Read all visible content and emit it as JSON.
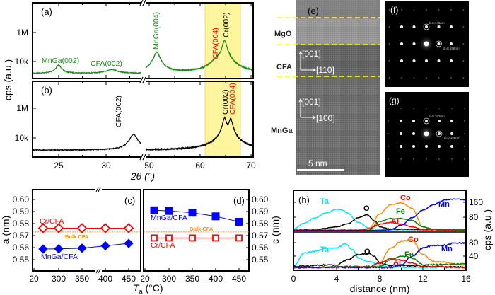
{
  "chart_data": [
    {
      "panel": "(a)",
      "type": "line",
      "ylabel": "cps (a.u.)",
      "xlabel": "2θ (°)",
      "yscale": "log",
      "yticks": [
        "1M",
        "10k"
      ],
      "xticks": [
        "25",
        "30",
        "50",
        "60",
        "70"
      ],
      "xbreak": [
        34,
        49
      ],
      "highlight_range": [
        61,
        68
      ],
      "highlight_color": "#fff59d",
      "color": "#1a8a1a",
      "baseline_cps": 1500,
      "peaks": [
        {
          "label": "MnGa(002)",
          "pos": 25.0,
          "cps": 5500,
          "fwhm": 0.6,
          "color": "#1a8a1a"
        },
        {
          "label": "CFA(002)",
          "pos": 30.6,
          "cps": 2800,
          "fwhm": 1.2,
          "color": "#1a8a1a"
        },
        {
          "label": "MnGa(004)",
          "pos": 51.5,
          "cps": 45000,
          "fwhm": 1.0,
          "color": "#1a8a1a"
        },
        {
          "label": "CFA(004)",
          "pos": 63.2,
          "cps": 9000,
          "fwhm": 1.5,
          "color": "#ff0000"
        },
        {
          "label": "Cr(002)",
          "pos": 64.8,
          "cps": 280000,
          "fwhm": 0.7,
          "color": "#000000"
        }
      ]
    },
    {
      "panel": "(b)",
      "type": "line",
      "yscale": "log",
      "yticks": [
        "1M",
        "10k"
      ],
      "color": "#000000",
      "baseline_cps": 1500,
      "peaks": [
        {
          "label": "CFA(002)",
          "pos": 32.9,
          "cps": 17000,
          "fwhm": 0.7,
          "color": "#000000"
        },
        {
          "label": "Cr(002)",
          "pos": 64.8,
          "cps": 220000,
          "fwhm": 0.6,
          "color": "#000000"
        },
        {
          "label": "CFA(004)",
          "pos": 66.0,
          "cps": 190000,
          "fwhm": 0.6,
          "color": "#ff0000"
        }
      ]
    },
    {
      "panel": "(c)",
      "type": "line",
      "ylabel": "a (nm)",
      "xlabel_main": "T",
      "xlabel_sub": "a",
      "xlabel_unit": "(°C)",
      "ylim": [
        0.54,
        0.605
      ],
      "yticks": [
        "0.60",
        "0.59",
        "0.58",
        "0.57",
        "0.56",
        "0.55"
      ],
      "xticks": [
        "20",
        "300",
        "350",
        "400",
        "450"
      ],
      "x": [
        25,
        300,
        350,
        400,
        450
      ],
      "reference": {
        "name": "Bulk CFA",
        "value": 0.573,
        "color": "#ff8c00"
      },
      "series": [
        {
          "name": "Cr/CFA",
          "color": "#ff0000",
          "marker": "open-diamond",
          "values": [
            0.5762,
            0.5762,
            0.5762,
            0.5762,
            0.5762
          ]
        },
        {
          "name": "MnGa/CFA",
          "color": "#0000ff",
          "marker": "filled-diamond",
          "values": [
            0.5588,
            0.559,
            0.5595,
            0.5615,
            0.5635
          ]
        }
      ]
    },
    {
      "panel": "(d)",
      "type": "line",
      "ylabel": "c (nm)",
      "ylim": [
        0.54,
        0.605
      ],
      "yticks": [
        "0.60",
        "0.59",
        "0.58",
        "0.57",
        "0.56",
        "0.55"
      ],
      "xticks": [
        "20",
        "300",
        "350",
        "400",
        "450"
      ],
      "x": [
        25,
        300,
        350,
        400,
        450
      ],
      "reference": {
        "name": "Bulk CFA",
        "value": 0.573,
        "color": "#ff8c00"
      },
      "series": [
        {
          "name": "MnGa/CFA",
          "color": "#0000ff",
          "marker": "filled-square",
          "values": [
            0.591,
            0.5905,
            0.589,
            0.586,
            0.5815
          ]
        },
        {
          "name": "Cr/CFA",
          "color": "#ff0000",
          "marker": "open-square",
          "values": [
            0.568,
            0.568,
            0.568,
            0.568,
            0.568
          ]
        }
      ]
    },
    {
      "panel": "(h)",
      "type": "line",
      "xlabel": "distance (nm)",
      "ylabel": "cps (a.u.)",
      "xlim": [
        0,
        16
      ],
      "xticks": [
        "0",
        "4",
        "8",
        "12",
        "16"
      ],
      "subplots": [
        {
          "yticks": [
            "160",
            "80"
          ],
          "ylim": [
            0,
            195
          ],
          "series": [
            {
              "name": "Ta",
              "color": "#00e5ff",
              "points": [
                [
                  0,
                  10
                ],
                [
                  1,
                  40
                ],
                [
                  2,
                  70
                ],
                [
                  3,
                  95
                ],
                [
                  4,
                  115
                ],
                [
                  4.5,
                  112
                ],
                [
                  5,
                  95
                ],
                [
                  6,
                  45
                ],
                [
                  7,
                  15
                ],
                [
                  8,
                  5
                ],
                [
                  16,
                  3
                ]
              ]
            },
            {
              "name": "O",
              "color": "#000000",
              "points": [
                [
                  0,
                  2
                ],
                [
                  2,
                  5
                ],
                [
                  4,
                  20
                ],
                [
                  5,
                  35
                ],
                [
                  6,
                  70
                ],
                [
                  6.8,
                  85
                ],
                [
                  7.5,
                  55
                ],
                [
                  8,
                  20
                ],
                [
                  9,
                  8
                ],
                [
                  16,
                  4
                ]
              ]
            },
            {
              "name": "Co",
              "color": "#ff8c00",
              "points": [
                [
                  0,
                  2
                ],
                [
                  6,
                  2
                ],
                [
                  7,
                  10
                ],
                [
                  8,
                  90
                ],
                [
                  9,
                  140
                ],
                [
                  10,
                  150
                ],
                [
                  11,
                  120
                ],
                [
                  12,
                  20
                ],
                [
                  13,
                  5
                ],
                [
                  16,
                  3
                ]
              ]
            },
            {
              "name": "Fe",
              "color": "#008000",
              "points": [
                [
                  0,
                  2
                ],
                [
                  7,
                  2
                ],
                [
                  8,
                  50
                ],
                [
                  9,
                  65
                ],
                [
                  10,
                  65
                ],
                [
                  11,
                  55
                ],
                [
                  12,
                  20
                ],
                [
                  13,
                  8
                ],
                [
                  16,
                  5
                ]
              ]
            },
            {
              "name": "Al",
              "color": "#ff0000",
              "points": [
                [
                  0,
                  3
                ],
                [
                  6,
                  3
                ],
                [
                  7,
                  10
                ],
                [
                  8,
                  35
                ],
                [
                  9,
                  45
                ],
                [
                  10,
                  35
                ],
                [
                  11,
                  20
                ],
                [
                  12,
                  5
                ],
                [
                  16,
                  2
                ]
              ]
            },
            {
              "name": "Mn",
              "color": "#0000ff",
              "points": [
                [
                  0,
                  1
                ],
                [
                  8,
                  1
                ],
                [
                  9,
                  5
                ],
                [
                  10,
                  30
                ],
                [
                  11,
                  70
                ],
                [
                  12,
                  110
                ],
                [
                  13,
                  140
                ],
                [
                  14,
                  165
                ],
                [
                  15,
                  170
                ],
                [
                  16,
                  165
                ]
              ]
            }
          ]
        },
        {
          "yticks": [
            "80",
            "40"
          ],
          "ylim": [
            0,
            97
          ],
          "series": [
            {
              "name": "Ta",
              "color": "#00e5ff",
              "points": [
                [
                  0,
                  5
                ],
                [
                  1,
                  45
                ],
                [
                  2,
                  50
                ],
                [
                  3,
                  60
                ],
                [
                  4,
                  60
                ],
                [
                  4.8,
                  72
                ],
                [
                  5.5,
                  55
                ],
                [
                  6,
                  30
                ],
                [
                  7,
                  20
                ],
                [
                  8,
                  8
                ],
                [
                  9,
                  3
                ],
                [
                  16,
                  2
                ]
              ]
            },
            {
              "name": "O",
              "color": "#000000",
              "points": [
                [
                  0,
                  5
                ],
                [
                  4,
                  10
                ],
                [
                  5,
                  25
                ],
                [
                  6,
                  40
                ],
                [
                  7,
                  43
                ],
                [
                  7.5,
                  35
                ],
                [
                  8,
                  15
                ],
                [
                  9,
                  8
                ],
                [
                  16,
                  3
                ]
              ]
            },
            {
              "name": "Co",
              "color": "#ff8c00",
              "points": [
                [
                  0,
                  2
                ],
                [
                  7,
                  2
                ],
                [
                  8,
                  15
                ],
                [
                  9,
                  60
                ],
                [
                  10,
                  80
                ],
                [
                  11,
                  84
                ],
                [
                  12,
                  40
                ],
                [
                  13,
                  20
                ],
                [
                  16,
                  10
                ]
              ]
            },
            {
              "name": "Fe",
              "color": "#008000",
              "points": [
                [
                  0,
                  2
                ],
                [
                  8,
                  5
                ],
                [
                  9,
                  25
                ],
                [
                  10,
                  35
                ],
                [
                  10.5,
                  36
                ],
                [
                  11,
                  30
                ],
                [
                  12,
                  10
                ],
                [
                  16,
                  12
                ]
              ]
            },
            {
              "name": "Al",
              "color": "#ff0000",
              "points": [
                [
                  0,
                  2
                ],
                [
                  7,
                  3
                ],
                [
                  8,
                  15
                ],
                [
                  9,
                  28
                ],
                [
                  10,
                  25
                ],
                [
                  11,
                  15
                ],
                [
                  12,
                  5
                ],
                [
                  16,
                  2
                ]
              ]
            },
            {
              "name": "Mn",
              "color": "#0000ff",
              "points": [
                [
                  0,
                  2
                ],
                [
                  9,
                  2
                ],
                [
                  10,
                  10
                ],
                [
                  11,
                  35
                ],
                [
                  12,
                  60
                ],
                [
                  13,
                  68
                ],
                [
                  14,
                  68
                ],
                [
                  15,
                  75
                ],
                [
                  16,
                  75
                ]
              ]
            }
          ]
        }
      ]
    }
  ],
  "labels": {
    "a": "(a)",
    "b": "(b)",
    "c": "(c)",
    "d": "(d)",
    "e": "(e)",
    "f": "(f)",
    "g": "(g)",
    "h": "(h)",
    "xrd_ylabel": "cps (a.u.)",
    "xrd_xlabel": "2θ (°)",
    "c_ylabel": "a (nm)",
    "d_ylabel": "c (nm)",
    "ta_main": "T",
    "ta_sub": "a",
    "ta_unit": " (°C)",
    "cr_cfa": "Cr/CFA",
    "mnga_cfa": "MnGa/CFA",
    "bulk_cfa": "Bulk CFA",
    "h_xlabel": "distance (nm)",
    "h_ylabel": "cps (a.u.)"
  },
  "tem": {
    "layers": [
      "MgO",
      "CFA",
      "MnGa"
    ],
    "cfa_axes": [
      "[001]",
      "[110]"
    ],
    "mnga_axes": [
      "[001]",
      "[100]"
    ],
    "scale_bar": "5 nm",
    "interface_line_color": "#ffff00"
  },
  "diffraction": {
    "f": [
      "d=0.145nm",
      "d=0.199nm"
    ],
    "g": [
      "d=0.187nm",
      "d=0.188nm"
    ]
  }
}
